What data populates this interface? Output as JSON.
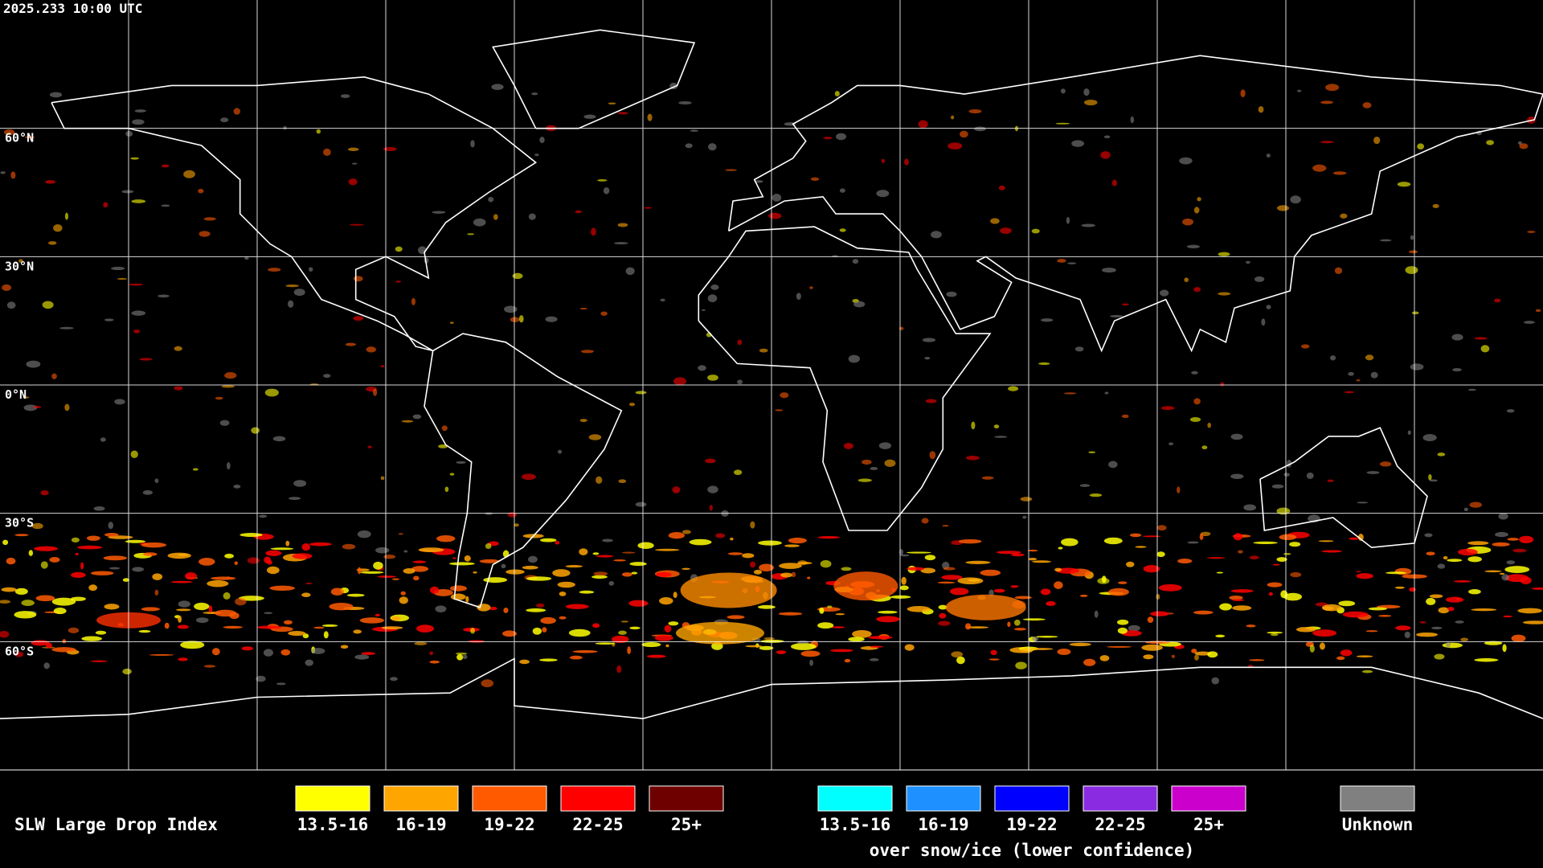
{
  "timestamp": "2025.233 10:00 UTC",
  "lat_labels": [
    "60°N",
    "30°N",
    "0°N",
    "30°S",
    "60°S"
  ],
  "legend": {
    "title": "SLW Large Drop Index",
    "items": [
      {
        "label": "13.5-16",
        "color": "#ffff00"
      },
      {
        "label": "16-19",
        "color": "#ffa500"
      },
      {
        "label": "19-22",
        "color": "#ff5a00"
      },
      {
        "label": "22-25",
        "color": "#ff0000"
      },
      {
        "label": "25+",
        "color": "#6e0000"
      }
    ],
    "snow_items": [
      {
        "label": "13.5-16",
        "color": "#00ffff"
      },
      {
        "label": "16-19",
        "color": "#1e90ff"
      },
      {
        "label": "19-22",
        "color": "#0000ff"
      },
      {
        "label": "22-25",
        "color": "#8a2be2"
      },
      {
        "label": "25+",
        "color": "#cc00cc"
      }
    ],
    "snow_caption": "over snow/ice (lower confidence)",
    "unknown": {
      "label": "Unknown",
      "color": "#808080"
    }
  }
}
